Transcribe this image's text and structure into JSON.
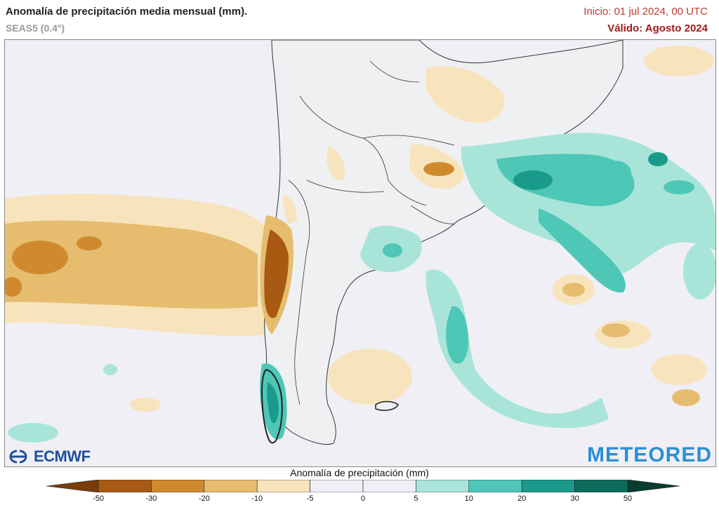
{
  "header": {
    "title": "Anomalía de precipitación media mensual (mm).",
    "subtitle": "SEAS5 (0.4°)",
    "init": "Inicio: 01 jul 2024, 00 UTC",
    "valid": "Válido: Agosto 2024"
  },
  "logos": {
    "left": "ECMWF",
    "right": "METEORED"
  },
  "colorbar": {
    "title": "Anomalía de precipitación (mm)",
    "ticks": [
      "-50",
      "-30",
      "-20",
      "-10",
      "-5",
      "0",
      "5",
      "10",
      "20",
      "30",
      "50"
    ],
    "colors": [
      "#7a3d0a",
      "#a85a12",
      "#d08a2e",
      "#e6bc6e",
      "#f7e4bd",
      "#f0eff6",
      "#f0eff6",
      "#a8e5d8",
      "#4ec7b7",
      "#1a9a8a",
      "#0d6b5a",
      "#083c30"
    ]
  },
  "map_colors": {
    "ocean_neutral": "#f0eff6",
    "land_neutral": "#eef0f2",
    "dry_light": "#f7e4bd",
    "dry_mid": "#e6bc6e",
    "dry_strong": "#d08a2e",
    "dry_extreme": "#a85a12",
    "wet_light": "#a8e5d8",
    "wet_mid": "#4ec7b7",
    "wet_strong": "#1a9a8a",
    "border": "#333333"
  }
}
